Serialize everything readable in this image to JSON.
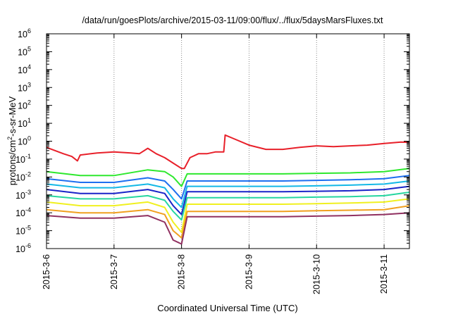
{
  "chart_data": {
    "type": "line",
    "title": "/data/run/goesPlots/archive/2015-03-11/09:00/flux/../flux/5daysMarsFluxes.txt",
    "xlabel": "Coordinated Universal Time (UTC)",
    "ylabel": {
      "pre": "protons/cm",
      "sup": "2",
      "post": "-s-sr-MeV"
    },
    "y_scale": "log",
    "ylim": [
      1e-06,
      1000000.0
    ],
    "xlim": [
      "2015-03-06 00:00",
      "2015-03-11 09:00"
    ],
    "x_ticks": [
      "2015-3-6",
      "2015-3-7",
      "2015-3-8",
      "2015-3-9",
      "2015-3-10",
      "2015-3-11"
    ],
    "y_ticks": [
      {
        "base": "10",
        "exp": "-6"
      },
      {
        "base": "10",
        "exp": "-5"
      },
      {
        "base": "10",
        "exp": "-4"
      },
      {
        "base": "10",
        "exp": "-3"
      },
      {
        "base": "10",
        "exp": "-2"
      },
      {
        "base": "10",
        "exp": "-1"
      },
      {
        "base": "10",
        "exp": "0"
      },
      {
        "base": "10",
        "exp": "1"
      },
      {
        "base": "10",
        "exp": "2"
      },
      {
        "base": "10",
        "exp": "3"
      },
      {
        "base": "10",
        "exp": "4"
      },
      {
        "base": "10",
        "exp": "5"
      },
      {
        "base": "10",
        "exp": "6"
      }
    ],
    "grid": {
      "x": "dotted",
      "y": "none"
    },
    "legend": "none",
    "series": [
      {
        "color": "#e8202a",
        "x": [
          "2015-03-06 00:00",
          "2015-03-06 03:00",
          "2015-03-06 06:00",
          "2015-03-06 09:00",
          "2015-03-06 11:00",
          "2015-03-06 12:00",
          "2015-03-06 18:00",
          "2015-03-07 00:00",
          "2015-03-07 06:00",
          "2015-03-07 09:00",
          "2015-03-07 12:00",
          "2015-03-07 15:00",
          "2015-03-07 18:00",
          "2015-03-07 21:00",
          "2015-03-08 00:00",
          "2015-03-08 01:00",
          "2015-03-08 03:00",
          "2015-03-08 06:00",
          "2015-03-08 09:00",
          "2015-03-08 12:00",
          "2015-03-08 15:00",
          "2015-03-08 15:30",
          "2015-03-08 18:00",
          "2015-03-09 00:00",
          "2015-03-09 06:00",
          "2015-03-09 12:00",
          "2015-03-09 18:00",
          "2015-03-10 00:00",
          "2015-03-10 06:00",
          "2015-03-10 12:00",
          "2015-03-10 18:00",
          "2015-03-11 00:00",
          "2015-03-11 06:00",
          "2015-03-11 09:00"
        ],
        "y": [
          0.45,
          0.3,
          0.2,
          0.14,
          0.08,
          0.17,
          0.22,
          0.25,
          0.22,
          0.2,
          0.4,
          0.2,
          0.12,
          0.06,
          0.03,
          0.03,
          0.12,
          0.2,
          0.2,
          0.25,
          0.25,
          2.2,
          1.5,
          0.6,
          0.35,
          0.35,
          0.45,
          0.55,
          0.5,
          0.55,
          0.6,
          0.75,
          0.9,
          0.85
        ]
      },
      {
        "color": "#2ee82e",
        "x": [
          "2015-03-06 00:00",
          "2015-03-06 12:00",
          "2015-03-07 00:00",
          "2015-03-07 12:00",
          "2015-03-07 18:00",
          "2015-03-07 21:00",
          "2015-03-08 00:00",
          "2015-03-08 02:00",
          "2015-03-08 12:00",
          "2015-03-09 00:00",
          "2015-03-09 12:00",
          "2015-03-10 00:00",
          "2015-03-10 12:00",
          "2015-03-11 00:00",
          "2015-03-11 09:00"
        ],
        "y": [
          0.02,
          0.012,
          0.012,
          0.025,
          0.02,
          0.01,
          0.003,
          0.015,
          0.015,
          0.015,
          0.015,
          0.016,
          0.017,
          0.02,
          0.03
        ]
      },
      {
        "color": "#1e6ff0",
        "x": [
          "2015-03-06 00:00",
          "2015-03-06 12:00",
          "2015-03-07 00:00",
          "2015-03-07 12:00",
          "2015-03-07 18:00",
          "2015-03-07 21:00",
          "2015-03-08 00:00",
          "2015-03-08 02:00",
          "2015-03-08 12:00",
          "2015-03-09 00:00",
          "2015-03-09 12:00",
          "2015-03-10 00:00",
          "2015-03-10 12:00",
          "2015-03-11 00:00",
          "2015-03-11 09:00"
        ],
        "y": [
          0.008,
          0.005,
          0.005,
          0.009,
          0.006,
          0.002,
          0.0006,
          0.006,
          0.006,
          0.006,
          0.006,
          0.0065,
          0.007,
          0.008,
          0.012
        ]
      },
      {
        "color": "#14b8e6",
        "x": [
          "2015-03-06 00:00",
          "2015-03-06 12:00",
          "2015-03-07 00:00",
          "2015-03-07 12:00",
          "2015-03-07 18:00",
          "2015-03-07 21:00",
          "2015-03-08 00:00",
          "2015-03-08 02:00",
          "2015-03-08 12:00",
          "2015-03-09 00:00",
          "2015-03-09 12:00",
          "2015-03-10 00:00",
          "2015-03-10 12:00",
          "2015-03-11 00:00",
          "2015-03-11 09:00"
        ],
        "y": [
          0.004,
          0.0025,
          0.0025,
          0.004,
          0.0025,
          0.0006,
          0.0002,
          0.003,
          0.003,
          0.003,
          0.003,
          0.0032,
          0.0035,
          0.004,
          0.006
        ]
      },
      {
        "color": "#1a24c8",
        "x": [
          "2015-03-06 00:00",
          "2015-03-06 12:00",
          "2015-03-07 00:00",
          "2015-03-07 12:00",
          "2015-03-07 18:00",
          "2015-03-07 21:00",
          "2015-03-08 00:00",
          "2015-03-08 02:00",
          "2015-03-08 12:00",
          "2015-03-09 00:00",
          "2015-03-09 12:00",
          "2015-03-10 00:00",
          "2015-03-10 12:00",
          "2015-03-11 00:00",
          "2015-03-11 09:00"
        ],
        "y": [
          0.002,
          0.0012,
          0.0012,
          0.002,
          0.0012,
          0.00025,
          8e-05,
          0.0015,
          0.0015,
          0.0015,
          0.0015,
          0.0016,
          0.0017,
          0.002,
          0.003
        ]
      },
      {
        "color": "#26d6a0",
        "x": [
          "2015-03-06 00:00",
          "2015-03-06 12:00",
          "2015-03-07 00:00",
          "2015-03-07 12:00",
          "2015-03-07 18:00",
          "2015-03-07 21:00",
          "2015-03-08 00:00",
          "2015-03-08 02:00",
          "2015-03-08 12:00",
          "2015-03-09 00:00",
          "2015-03-09 12:00",
          "2015-03-10 00:00",
          "2015-03-10 12:00",
          "2015-03-11 00:00",
          "2015-03-11 09:00"
        ],
        "y": [
          0.0009,
          0.0006,
          0.0006,
          0.0009,
          0.0005,
          0.00012,
          4e-05,
          0.0007,
          0.0007,
          0.0007,
          0.0007,
          0.00075,
          0.0008,
          0.0009,
          0.0014
        ]
      },
      {
        "color": "#f0f020",
        "x": [
          "2015-03-06 00:00",
          "2015-03-06 12:00",
          "2015-03-07 00:00",
          "2015-03-07 12:00",
          "2015-03-07 18:00",
          "2015-03-07 21:00",
          "2015-03-08 00:00",
          "2015-03-08 02:00",
          "2015-03-08 12:00",
          "2015-03-09 00:00",
          "2015-03-09 12:00",
          "2015-03-10 00:00",
          "2015-03-10 12:00",
          "2015-03-11 00:00",
          "2015-03-11 09:00"
        ],
        "y": [
          0.0004,
          0.00025,
          0.00025,
          0.0004,
          0.0002,
          3e-05,
          8e-06,
          0.0003,
          0.0003,
          0.0003,
          0.0003,
          0.00032,
          0.00035,
          0.0004,
          0.0006
        ]
      },
      {
        "color": "#f0a020",
        "x": [
          "2015-03-06 00:00",
          "2015-03-06 12:00",
          "2015-03-07 00:00",
          "2015-03-07 12:00",
          "2015-03-07 18:00",
          "2015-03-07 21:00",
          "2015-03-08 00:00",
          "2015-03-08 02:00",
          "2015-03-08 12:00",
          "2015-03-09 00:00",
          "2015-03-09 12:00",
          "2015-03-10 00:00",
          "2015-03-10 12:00",
          "2015-03-11 00:00",
          "2015-03-11 09:00"
        ],
        "y": [
          0.00015,
          0.0001,
          0.0001,
          0.00015,
          8e-05,
          1e-05,
          4e-06,
          0.00012,
          0.00012,
          0.00012,
          0.00012,
          0.00013,
          0.00014,
          0.00015,
          0.00025
        ]
      },
      {
        "color": "#903060",
        "x": [
          "2015-03-06 00:00",
          "2015-03-06 12:00",
          "2015-03-07 00:00",
          "2015-03-07 12:00",
          "2015-03-07 18:00",
          "2015-03-07 21:00",
          "2015-03-08 00:00",
          "2015-03-08 02:00",
          "2015-03-08 12:00",
          "2015-03-09 00:00",
          "2015-03-09 12:00",
          "2015-03-10 00:00",
          "2015-03-10 12:00",
          "2015-03-11 00:00",
          "2015-03-11 09:00"
        ],
        "y": [
          7e-05,
          5e-05,
          5e-05,
          7e-05,
          3e-05,
          3e-06,
          1.8e-06,
          6e-05,
          6e-05,
          6e-05,
          6e-05,
          6.5e-05,
          7e-05,
          8e-05,
          0.0001
        ]
      }
    ]
  }
}
